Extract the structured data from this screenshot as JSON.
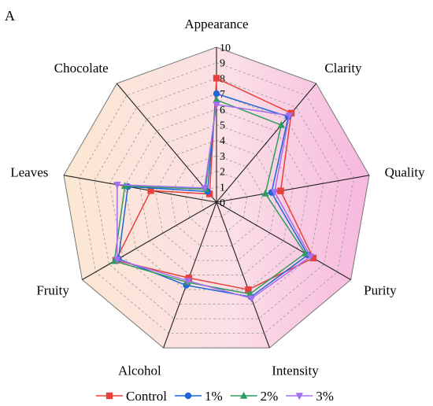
{
  "panel_label": "A",
  "colors": {
    "control": "#e8413c",
    "one_percent": "#1f65d8",
    "two_percent": "#2e9c5f",
    "three_percent": "#a36ef0",
    "axis_line": "#222222",
    "grid": "#999999",
    "outer": "#777777"
  },
  "chart_data": {
    "type": "radar",
    "title": "",
    "axes": [
      "Appearance",
      "Clarity",
      "Quality",
      "Purity",
      "Intensity",
      "Alcohol",
      "Fruity",
      "Leaves",
      "Chocolate"
    ],
    "range": [
      0,
      10
    ],
    "ticks": [
      0,
      1,
      2,
      3,
      4,
      5,
      6,
      7,
      8,
      9,
      10
    ],
    "grid": true,
    "legend_position": "bottom",
    "series": [
      {
        "name": "Control",
        "key": "control",
        "marker": "square",
        "values": [
          8.0,
          7.5,
          4.2,
          7.2,
          6.0,
          5.2,
          7.5,
          4.3,
          0.7
        ]
      },
      {
        "name": "1%",
        "key": "one_percent",
        "marker": "circle",
        "values": [
          7.0,
          7.2,
          3.6,
          6.8,
          6.5,
          5.7,
          7.3,
          5.8,
          0.9
        ]
      },
      {
        "name": "2%",
        "key": "two_percent",
        "marker": "triangle-up",
        "values": [
          6.6,
          6.5,
          3.2,
          6.6,
          6.3,
          5.5,
          7.6,
          6.0,
          1.1
        ]
      },
      {
        "name": "3%",
        "key": "three_percent",
        "marker": "triangle-down",
        "values": [
          6.3,
          7.3,
          3.8,
          7.0,
          6.6,
          5.4,
          7.4,
          6.5,
          1.2
        ]
      }
    ]
  }
}
